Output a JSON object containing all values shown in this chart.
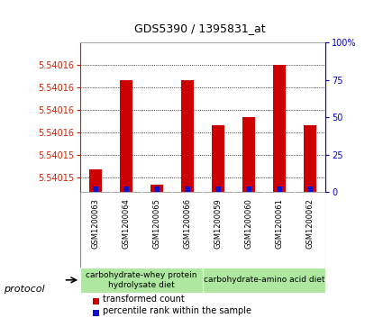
{
  "title": "GDS5390 / 1395831_at",
  "samples": [
    "GSM1200063",
    "GSM1200064",
    "GSM1200065",
    "GSM1200066",
    "GSM1200059",
    "GSM1200060",
    "GSM1200061",
    "GSM1200062"
  ],
  "transformed_counts": [
    5.540151,
    5.540163,
    5.540149,
    5.540163,
    5.540157,
    5.540158,
    5.540165,
    5.540157
  ],
  "percentile_ranks": [
    0,
    0,
    0,
    0,
    0,
    0,
    0,
    0
  ],
  "y_min": 5.540148,
  "y_max": 5.540168,
  "left_yticks": [
    5.54015,
    5.540153,
    5.540156,
    5.540159,
    5.540162,
    5.540165
  ],
  "left_ytick_labels": [
    "5.54015",
    "5.54015",
    "5.54016",
    "5.54016",
    "5.54016",
    "5.54016"
  ],
  "right_yticks": [
    0,
    25,
    50,
    75,
    100
  ],
  "right_ytick_labels": [
    "0",
    "25",
    "50",
    "75",
    "100%"
  ],
  "bar_color": "#cc0000",
  "percentile_color": "#1111cc",
  "bar_width": 0.4,
  "percentile_bar_width": 0.18,
  "groups": [
    {
      "label": "carbohydrate-whey protein\nhydrolysate diet",
      "start": 0,
      "end": 3,
      "color": "#aee8a0"
    },
    {
      "label": "carbohydrate-amino acid diet",
      "start": 4,
      "end": 7,
      "color": "#aee8a0"
    }
  ],
  "protocol_label": "protocol",
  "legend_items": [
    {
      "label": "transformed count",
      "color": "#cc0000"
    },
    {
      "label": "percentile rank within the sample",
      "color": "#1111cc"
    }
  ],
  "left_axis_color": "#cc2200",
  "right_axis_color": "#0000cc",
  "title_fontsize": 9,
  "tick_fontsize": 7,
  "sample_fontsize": 6,
  "group_fontsize": 6.5,
  "legend_fontsize": 7,
  "protocol_fontsize": 8,
  "xlabels_bg": "#cccccc",
  "plot_bg": "#ffffff",
  "fig_bg": "#ffffff"
}
